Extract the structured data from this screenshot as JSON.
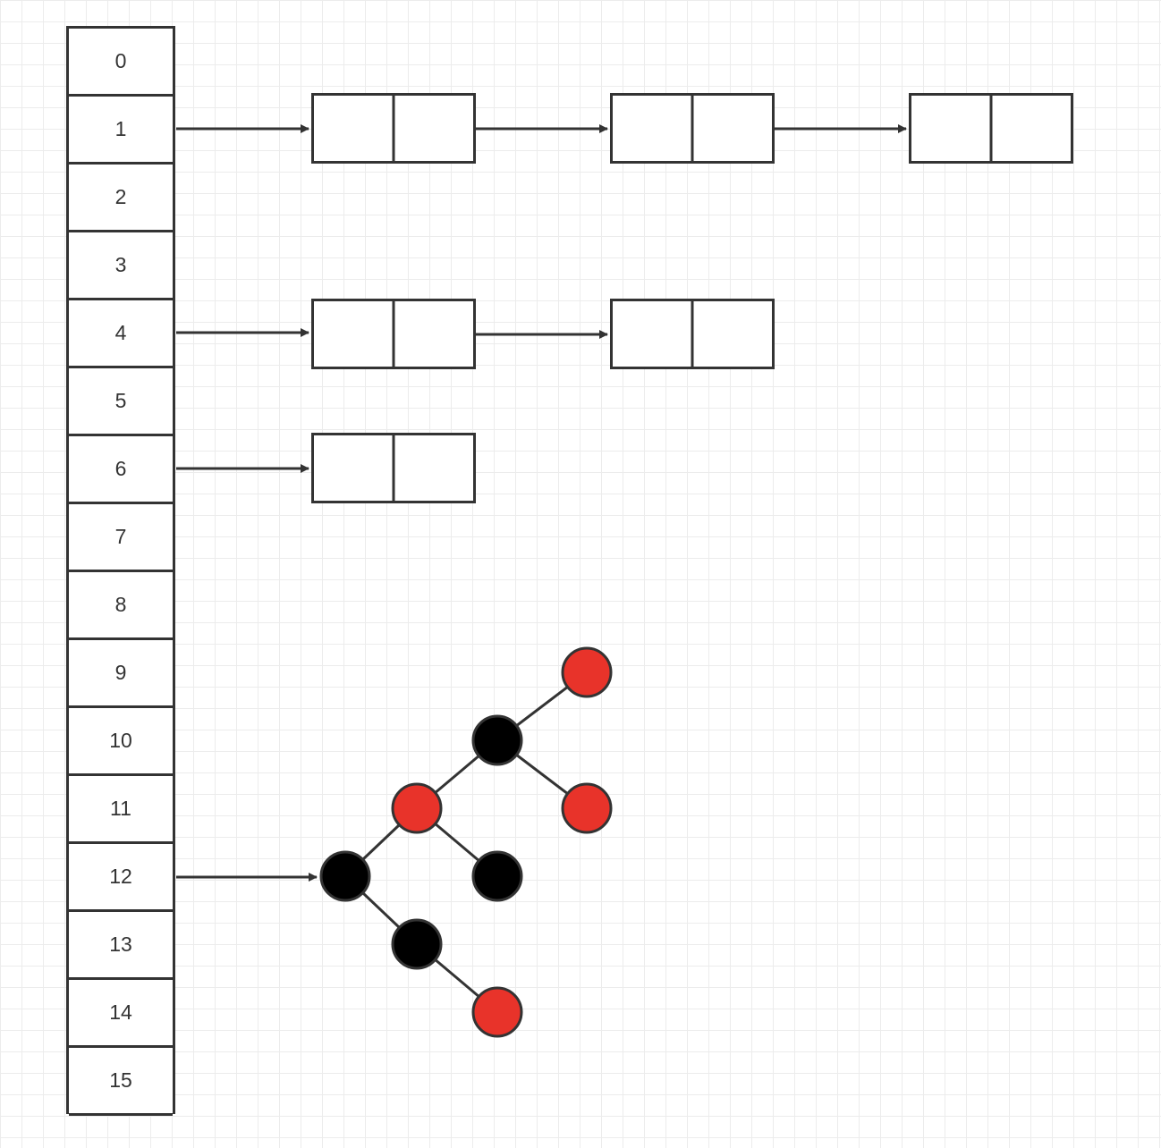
{
  "buckets": [
    "0",
    "1",
    "2",
    "3",
    "4",
    "5",
    "6",
    "7",
    "8",
    "9",
    "10",
    "11",
    "12",
    "13",
    "14",
    "15"
  ],
  "chains": [
    {
      "bucket": 1,
      "length": 3
    },
    {
      "bucket": 4,
      "length": 2
    },
    {
      "bucket": 6,
      "length": 1
    }
  ],
  "tree": {
    "bucket": 12,
    "node_colors": {
      "red": "#e8332a",
      "black": "#000000"
    }
  },
  "colors": {
    "stroke": "#333333",
    "grid": "#ececec"
  }
}
